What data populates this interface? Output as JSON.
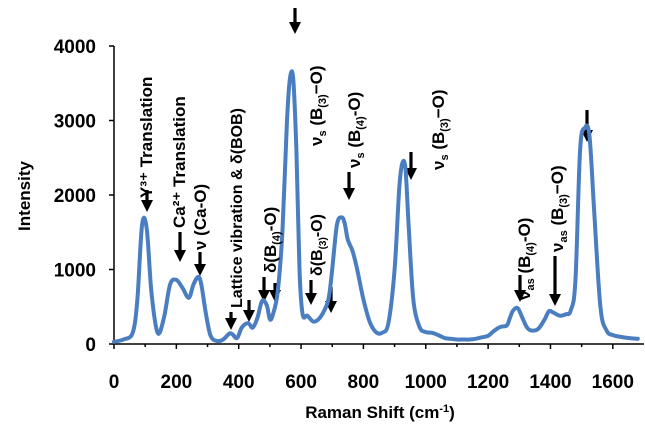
{
  "chart_data": {
    "type": "line",
    "title": "",
    "xlabel": "Raman Shift (cm⁻¹)",
    "ylabel": "Intensity",
    "xlim": [
      0,
      1700
    ],
    "ylim": [
      0,
      4000
    ],
    "x_ticks": [
      "0",
      "200",
      "400",
      "600",
      "800",
      "1000",
      "1200",
      "1400",
      "1600"
    ],
    "y_ticks": [
      "0",
      "1000",
      "2000",
      "3000",
      "4000"
    ],
    "grid": false,
    "legend": "none",
    "series_color": "#4a7ec1",
    "series": [
      {
        "x": [
          0,
          30,
          60,
          75,
          90,
          105,
          120,
          140,
          160,
          180,
          200,
          220,
          240,
          255,
          270,
          280,
          295,
          310,
          330,
          350,
          370,
          380,
          395,
          410,
          430,
          445,
          460,
          475,
          490,
          500,
          510,
          525,
          540,
          555,
          565,
          575,
          585,
          595,
          605,
          620,
          640,
          660,
          680,
          690,
          700,
          715,
          730,
          740,
          750,
          765,
          780,
          800,
          820,
          840,
          860,
          880,
          900,
          915,
          925,
          935,
          945,
          960,
          980,
          1000,
          1020,
          1040,
          1060,
          1080,
          1100,
          1120,
          1140,
          1160,
          1180,
          1200,
          1220,
          1240,
          1260,
          1270,
          1280,
          1295,
          1310,
          1325,
          1340,
          1360,
          1380,
          1395,
          1410,
          1430,
          1450,
          1465,
          1480,
          1495,
          1510,
          1525,
          1540,
          1560,
          1580,
          1600,
          1620,
          1650,
          1680
        ],
        "y": [
          30,
          60,
          150,
          600,
          1600,
          1550,
          700,
          150,
          350,
          800,
          860,
          750,
          620,
          800,
          900,
          800,
          400,
          110,
          40,
          60,
          140,
          130,
          80,
          220,
          280,
          220,
          350,
          580,
          520,
          330,
          400,
          700,
          1500,
          3000,
          3580,
          3550,
          2600,
          1000,
          400,
          380,
          300,
          350,
          500,
          650,
          1000,
          1600,
          1700,
          1620,
          1400,
          1250,
          1000,
          600,
          300,
          160,
          150,
          280,
          1000,
          2100,
          2430,
          2350,
          1600,
          600,
          230,
          160,
          150,
          120,
          80,
          70,
          60,
          60,
          60,
          70,
          90,
          110,
          180,
          230,
          250,
          350,
          450,
          480,
          350,
          220,
          180,
          200,
          320,
          440,
          420,
          380,
          400,
          450,
          850,
          2600,
          2900,
          2800,
          1800,
          500,
          180,
          120,
          100,
          80,
          70
        ]
      }
    ],
    "annotations": [
      {
        "text": "Y³⁺ Translation"
      },
      {
        "text": "Ca²⁺ Translation"
      },
      {
        "text": "ν (Ca-O)"
      },
      {
        "text": "Lattice vibration & δ(BOB)"
      },
      {
        "text": "δ(B(4)-O)"
      },
      {
        "text": "νs (B(3)−O)"
      },
      {
        "text": "δ(B(3)-O)"
      },
      {
        "text": "νs (B(4)-O)"
      },
      {
        "text": "νs (B(3)−O)"
      },
      {
        "text": "νas (B(4)-O)"
      },
      {
        "text": "νas (B(3)−O)"
      }
    ]
  }
}
